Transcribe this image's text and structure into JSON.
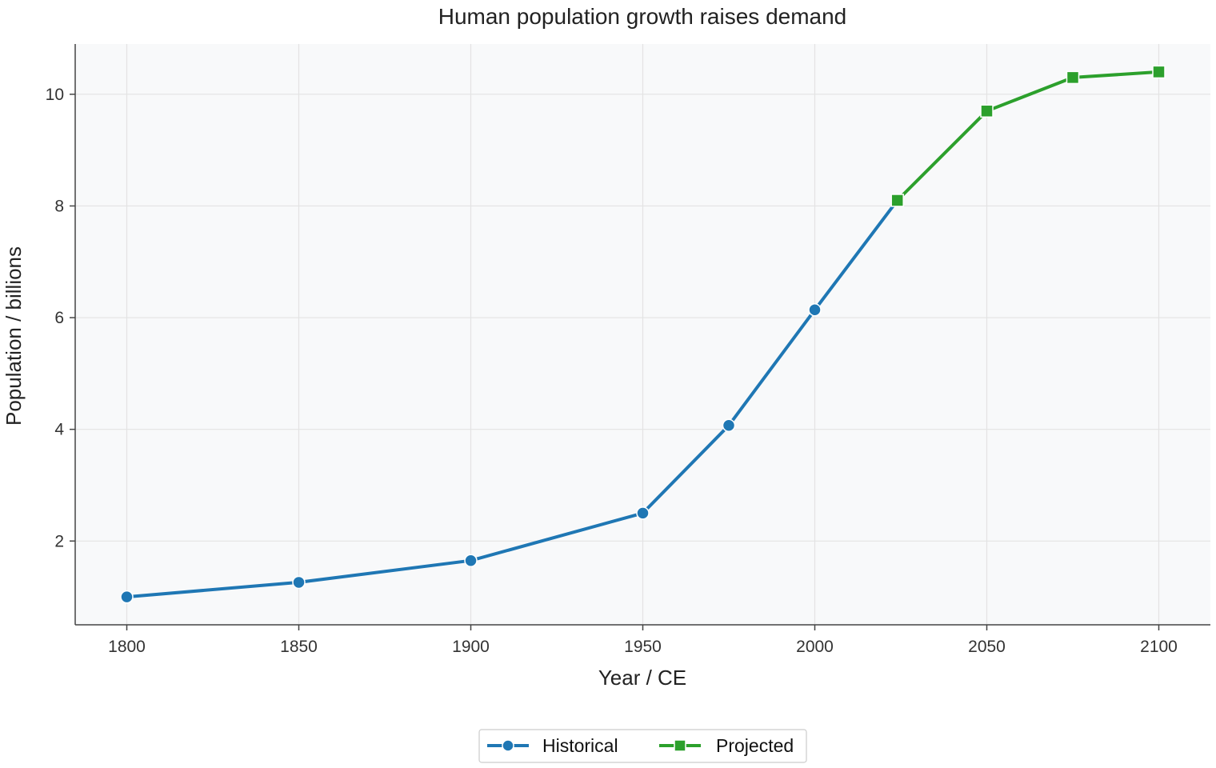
{
  "chart_data": {
    "type": "line",
    "title": "Human population growth raises demand",
    "xlabel": "Year / CE",
    "ylabel": "Population / billions",
    "xlim": [
      1785,
      2115
    ],
    "ylim": [
      0.5,
      10.9
    ],
    "xticks": [
      1800,
      1850,
      1900,
      1950,
      2000,
      2050,
      2100
    ],
    "yticks": [
      2,
      4,
      6,
      8,
      10
    ],
    "grid": true,
    "legend": "bottom-center",
    "series": [
      {
        "name": "Historical",
        "color": "#1f77b4",
        "marker": "circle",
        "x": [
          1800,
          1850,
          1900,
          1950,
          1975,
          2000,
          2024
        ],
        "y": [
          1.0,
          1.26,
          1.65,
          2.5,
          4.07,
          6.14,
          8.1
        ]
      },
      {
        "name": "Projected",
        "color": "#2ca02c",
        "marker": "square",
        "x": [
          2024,
          2050,
          2075,
          2100
        ],
        "y": [
          8.1,
          9.7,
          10.3,
          10.4
        ]
      }
    ]
  }
}
